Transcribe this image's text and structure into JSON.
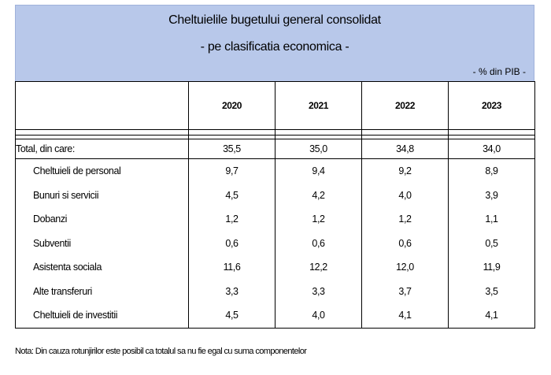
{
  "header": {
    "title": "Cheltuielile bugetului general consolidat",
    "subtitle": "- pe clasificatia economica -",
    "unit": "- % din PIB -"
  },
  "table": {
    "years": [
      "2020",
      "2021",
      "2022",
      "2023"
    ],
    "total": {
      "label": "Total, din care:",
      "values": [
        "35,5",
        "35,0",
        "34,8",
        "34,0"
      ]
    },
    "rows": [
      {
        "label": "Cheltuieli de personal",
        "values": [
          "9,7",
          "9,4",
          "9,2",
          "8,9"
        ]
      },
      {
        "label": "Bunuri si servicii",
        "values": [
          "4,5",
          "4,2",
          "4,0",
          "3,9"
        ]
      },
      {
        "label": "Dobanzi",
        "values": [
          "1,2",
          "1,2",
          "1,2",
          "1,1"
        ]
      },
      {
        "label": "Subventii",
        "values": [
          "0,6",
          "0,6",
          "0,6",
          "0,5"
        ]
      },
      {
        "label": "Asistenta sociala",
        "values": [
          "11,6",
          "12,2",
          "12,0",
          "11,9"
        ]
      },
      {
        "label": "Alte transferuri",
        "values": [
          "3,3",
          "3,3",
          "3,7",
          "3,5"
        ]
      },
      {
        "label": "Cheltuieli de investitii",
        "values": [
          "4,5",
          "4,0",
          "4,1",
          "4,1"
        ]
      }
    ]
  },
  "note": "Nota: Din cauza rotunjirilor este posibil ca totalul sa nu fie egal cu suma componentelor"
}
